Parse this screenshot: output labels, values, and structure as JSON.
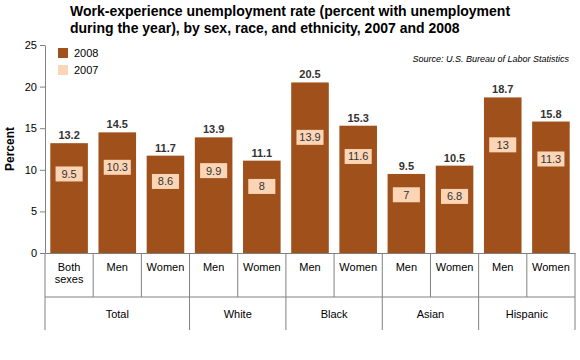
{
  "chart_data": {
    "type": "bar",
    "title": "Work-experience unemployment rate (percent with unemployment during the year), by sex, race, and ethnicity, 2007 and 2008",
    "y_label": "Percent",
    "annotations": [
      "Source: U.S. Bureau of Labor Statistics"
    ],
    "categories": [
      "Both sexes",
      "Men",
      "Women",
      "Men",
      "Women",
      "Men",
      "Women",
      "Men",
      "Women",
      "Men",
      "Women"
    ],
    "groups": [
      {
        "name": "Total",
        "count": 3
      },
      {
        "name": "White",
        "count": 2
      },
      {
        "name": "Black",
        "count": 2
      },
      {
        "name": "Asian",
        "count": 2
      },
      {
        "name": "Hispanic",
        "count": 2
      }
    ],
    "series": [
      {
        "name": "2008",
        "type": "bar",
        "color": "#a0501a",
        "values": [
          13.2,
          14.5,
          11.7,
          13.9,
          11.1,
          20.5,
          15.3,
          9.5,
          10.5,
          18.7,
          15.8
        ]
      },
      {
        "name": "2007",
        "type": "scatter",
        "marker": "square",
        "color": "#fbd5b5",
        "values": [
          9.5,
          10.3,
          8.6,
          9.9,
          8.0,
          13.9,
          11.6,
          7.0,
          6.8,
          13.0,
          11.3
        ]
      }
    ],
    "ylim": [
      0,
      25
    ],
    "yticks": [
      0,
      5,
      10,
      15,
      20,
      25
    ],
    "grid": false,
    "legend": "top-left",
    "data_labels": true
  }
}
